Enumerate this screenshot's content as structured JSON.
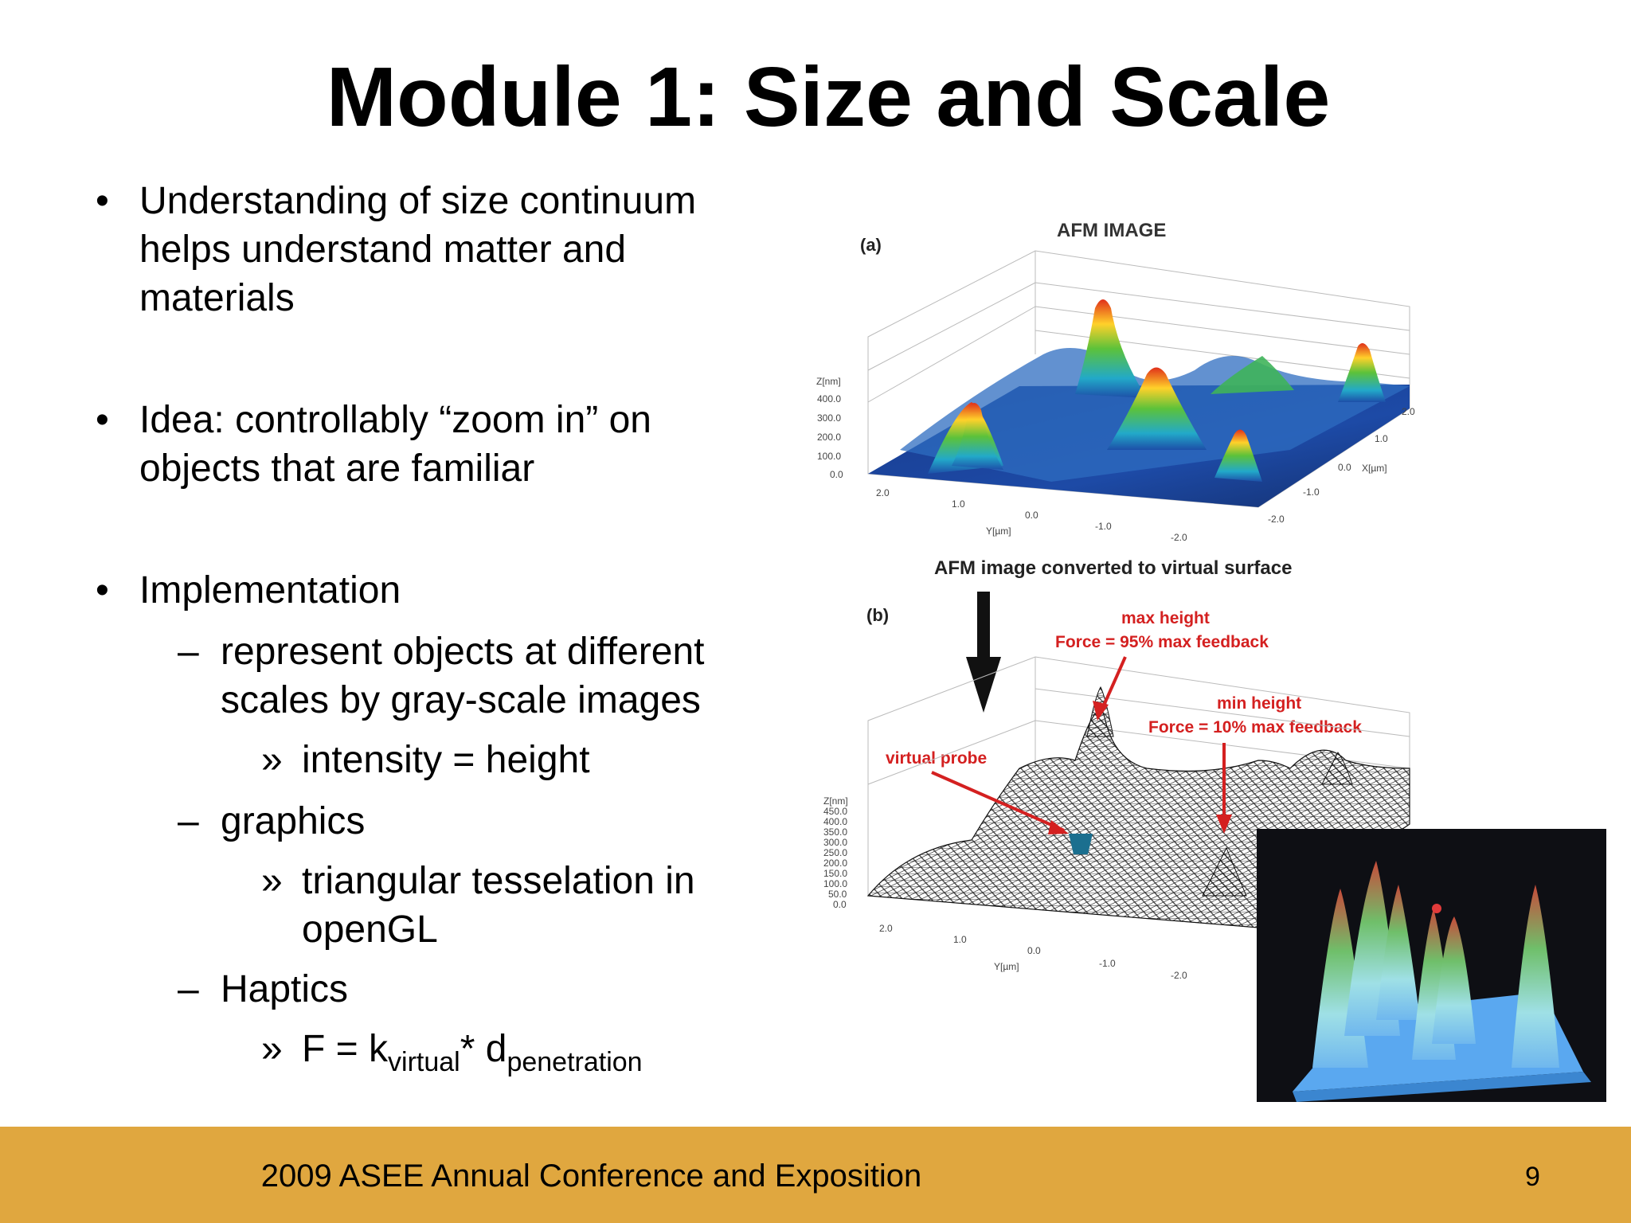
{
  "slide": {
    "title": "Module 1: Size and Scale",
    "bullets": {
      "b1": "Understanding of size continuum helps understand matter and materials",
      "b2": "Idea: controllably “zoom in” on objects that are familiar",
      "b3": "Implementation",
      "b3_1": "represent objects at different scales by gray-scale images",
      "b3_1_1": "intensity = height",
      "b3_2": "graphics",
      "b3_2_1": "triangular tesselation in openGL",
      "b3_3": "Haptics",
      "b3_3_1": {
        "lhs": "F = k",
        "sub1": "virtual",
        "mid": "* d",
        "sub2": "penetration"
      }
    },
    "markers": {
      "bullet": "•",
      "dash": "–",
      "raquo": "»"
    }
  },
  "figure": {
    "panel_a": {
      "label": "(a)",
      "title": "AFM IMAGE",
      "z_label": "Z[nm]",
      "z_ticks": [
        "400.0",
        "300.0",
        "200.0",
        "100.0",
        "0.0"
      ],
      "y_label": "Y[µm]",
      "y_ticks": [
        "2.0",
        "1.0",
        "0.0",
        "-1.0",
        "-2.0"
      ],
      "x_label": "X[µm]",
      "x_ticks": [
        "2.0",
        "1.0",
        "0.0",
        "-1.0",
        "-2.0"
      ]
    },
    "arrow_caption": "AFM image converted to virtual surface",
    "panel_b": {
      "label": "(b)",
      "max_height": "max height",
      "max_force": "Force = 95% max feedback",
      "min_height": "min height",
      "min_force": "Force = 10% max feedback",
      "probe": "virtual probe",
      "z_label": "Z[nm]",
      "z_ticks": [
        "450.0",
        "400.0",
        "350.0",
        "300.0",
        "250.0",
        "200.0",
        "150.0",
        "100.0",
        "50.0",
        "0.0"
      ],
      "y_label": "Y[µm]",
      "y_ticks": [
        "2.0",
        "1.0",
        "0.0",
        "-1.0",
        "-2.0"
      ]
    },
    "colors": {
      "annotation_red": "#d42020",
      "surface_blue": "#1f3f9a",
      "probe": "#1b6f8f"
    }
  },
  "footer": {
    "text": "2009 ASEE Annual Conference and Exposition",
    "page": "9",
    "color": "#e0a73f"
  }
}
